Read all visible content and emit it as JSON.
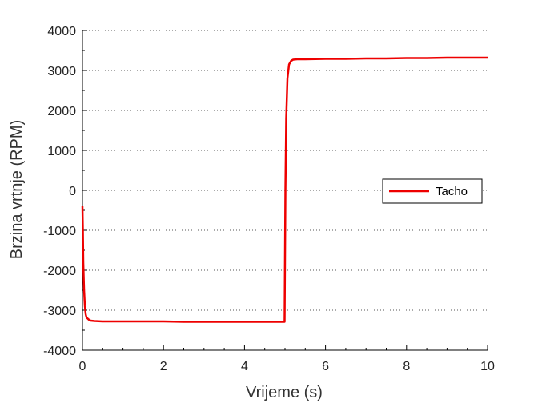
{
  "chart_data": {
    "type": "line",
    "title": "",
    "xlabel": "Vrijeme (s)",
    "ylabel": "Brzina vrtnje (RPM)",
    "xlim": [
      0,
      10
    ],
    "ylim": [
      -4000,
      4000
    ],
    "x_ticks": [
      "0",
      "2",
      "4",
      "6",
      "8",
      "10"
    ],
    "y_ticks": [
      "-4000",
      "-3000",
      "-2000",
      "-1000",
      "0",
      "1000",
      "2000",
      "3000",
      "4000"
    ],
    "grid": "horizontal dotted",
    "legend_position": "right",
    "series": [
      {
        "name": "Tacho",
        "color": "#ee0000",
        "x": [
          0,
          0.01,
          0.02,
          0.04,
          0.06,
          0.08,
          0.1,
          0.15,
          0.2,
          0.3,
          0.5,
          1,
          1.5,
          2,
          2.5,
          3,
          3.5,
          4,
          4.5,
          4.98,
          4.99,
          5.01,
          5.03,
          5.06,
          5.1,
          5.15,
          5.2,
          5.3,
          5.5,
          6,
          6.5,
          7,
          7.5,
          8,
          8.5,
          9,
          9.5,
          10
        ],
        "y": [
          -400,
          -1000,
          -1800,
          -2500,
          -2900,
          -3100,
          -3180,
          -3230,
          -3260,
          -3270,
          -3280,
          -3280,
          -3280,
          -3280,
          -3290,
          -3290,
          -3290,
          -3290,
          -3290,
          -3290,
          -3290,
          0,
          1800,
          2800,
          3150,
          3240,
          3270,
          3280,
          3280,
          3290,
          3290,
          3300,
          3300,
          3310,
          3310,
          3320,
          3320,
          3320
        ]
      }
    ]
  }
}
